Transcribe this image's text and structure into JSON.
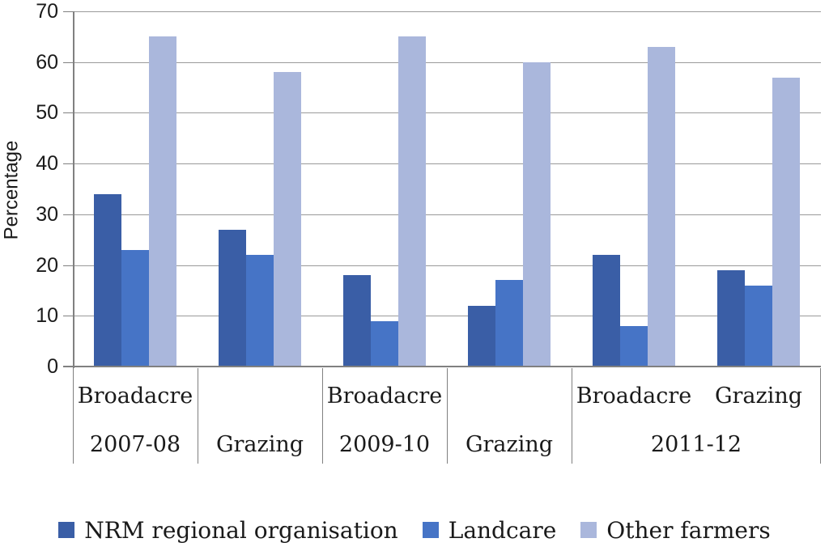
{
  "chart_data": {
    "type": "bar",
    "title": "",
    "ylabel": "Percentage",
    "xlabel": "",
    "ylim": [
      0,
      70
    ],
    "yticks": [
      0,
      10,
      20,
      30,
      40,
      50,
      60,
      70
    ],
    "grid": true,
    "legend_position": "bottom",
    "categories": [
      {
        "group": "Broadacre",
        "period": "2007-08"
      },
      {
        "group": "Grazing",
        "period": "2007-08"
      },
      {
        "group": "Broadacre",
        "period": "2009-10"
      },
      {
        "group": "Grazing",
        "period": "2009-10"
      },
      {
        "group": "Broadacre",
        "period": "2011-12"
      },
      {
        "group": "Grazing",
        "period": "2011-12"
      }
    ],
    "axis_cells": [
      {
        "tops": [
          "Broadacre"
        ],
        "bottom": "2007-08",
        "span": 1
      },
      {
        "tops": [
          ""
        ],
        "bottom": "Grazing",
        "span": 1
      },
      {
        "tops": [
          "Broadacre"
        ],
        "bottom": "2009-10",
        "span": 1
      },
      {
        "tops": [
          ""
        ],
        "bottom": "Grazing",
        "span": 1
      },
      {
        "tops": [
          "Broadacre",
          "Grazing"
        ],
        "bottom": "2011-12",
        "span": 2
      }
    ],
    "series": [
      {
        "name": "NRM regional organisation",
        "color": "#3A5EA6",
        "values": [
          34,
          27,
          18,
          12,
          22,
          19
        ]
      },
      {
        "name": "Landcare",
        "color": "#4674C6",
        "values": [
          23,
          22,
          9,
          17,
          8,
          16
        ]
      },
      {
        "name": "Other farmers",
        "color": "#AAB7DC",
        "values": [
          65,
          58,
          65,
          60,
          63,
          57
        ]
      }
    ],
    "colors": {
      "gridline": "#9a9a9a",
      "axis_line": "#808080",
      "text": "#1a1a1a"
    }
  }
}
